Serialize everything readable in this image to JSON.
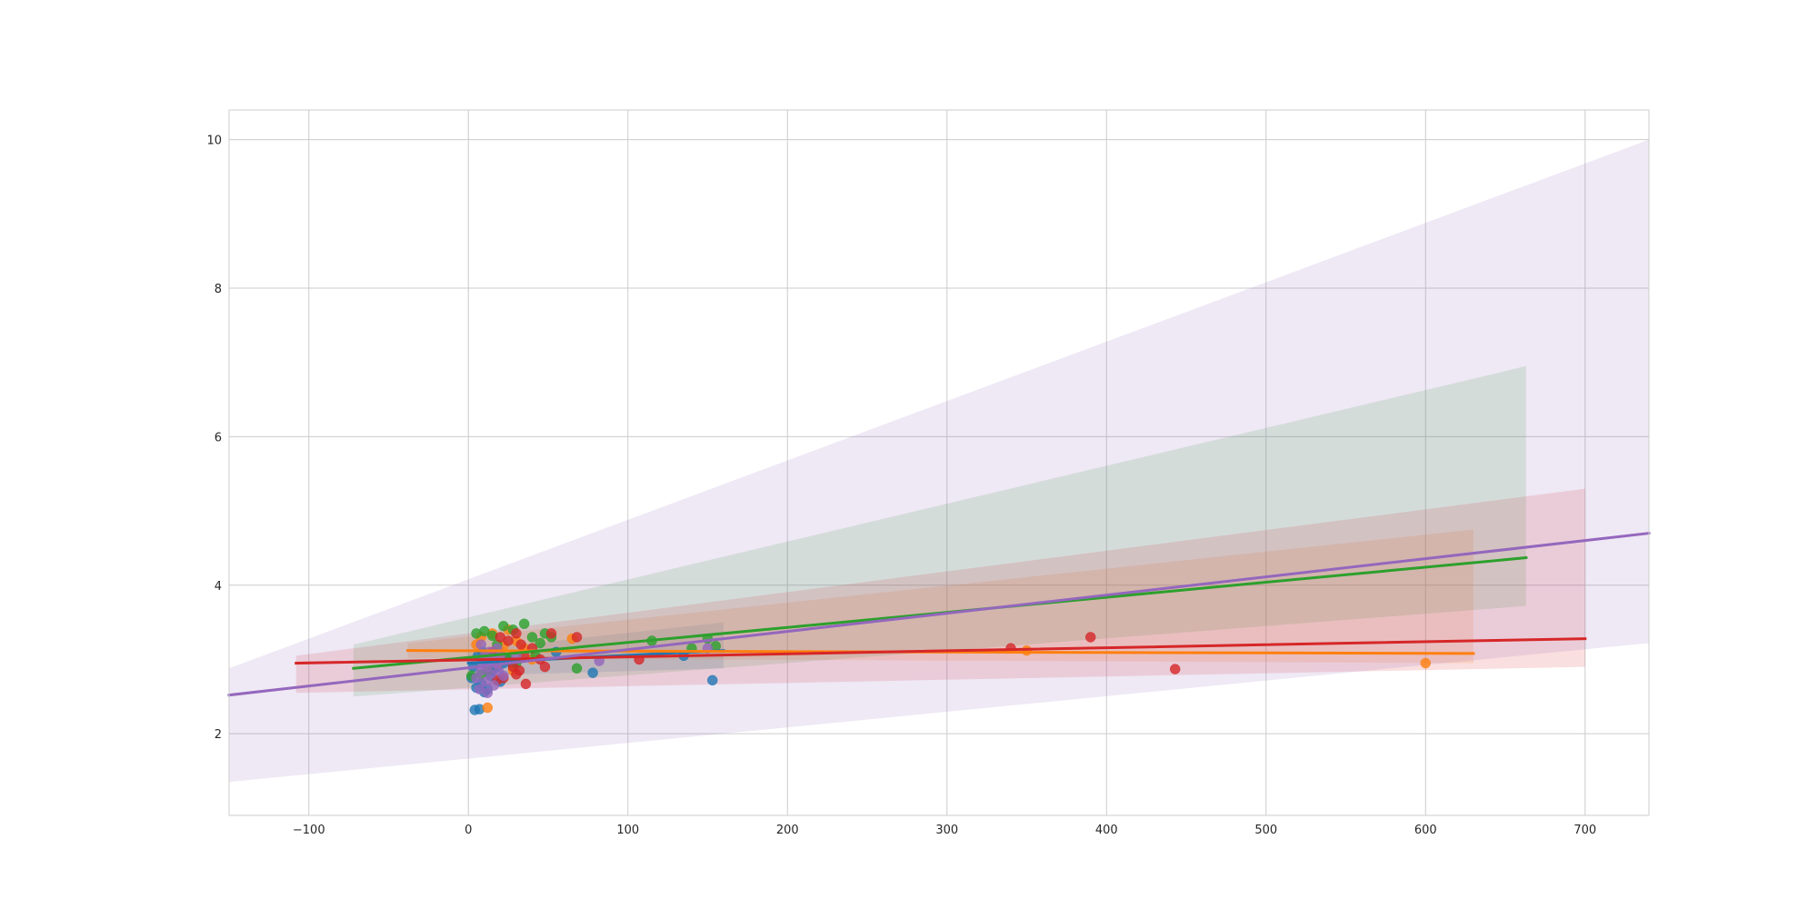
{
  "chart_data": {
    "type": "scatter",
    "title": "",
    "xlabel": "",
    "ylabel": "",
    "xlim": [
      -150,
      740
    ],
    "ylim": [
      0.9,
      10.4
    ],
    "xticks": [
      -100,
      0,
      100,
      200,
      300,
      400,
      500,
      600,
      700
    ],
    "xtick_labels": [
      "−100",
      "0",
      "100",
      "200",
      "300",
      "400",
      "500",
      "600",
      "700"
    ],
    "yticks": [
      2,
      4,
      6,
      8,
      10
    ],
    "ytick_labels": [
      "2",
      "4",
      "6",
      "8",
      "10"
    ],
    "grid": true,
    "legend": "none",
    "series": [
      {
        "color": "#1f77b4",
        "points": [
          [
            2,
            2.75
          ],
          [
            5,
            2.62
          ],
          [
            8,
            2.68
          ],
          [
            10,
            2.56
          ],
          [
            12,
            2.6
          ],
          [
            15,
            2.85
          ],
          [
            18,
            2.9
          ],
          [
            22,
            2.95
          ],
          [
            25,
            3.0
          ],
          [
            4,
            2.32
          ],
          [
            7,
            2.33
          ],
          [
            3,
            2.9
          ],
          [
            6,
            3.05
          ],
          [
            9,
            3.1
          ],
          [
            14,
            2.78
          ],
          [
            20,
            2.7
          ],
          [
            28,
            2.92
          ],
          [
            78,
            2.82
          ],
          [
            153,
            2.72
          ],
          [
            135,
            3.05
          ],
          [
            55,
            3.1
          ]
        ],
        "fit_x": [
          0,
          160
        ],
        "fit_y": [
          2.95,
          3.12
        ],
        "band_lo": [
          2.78,
          2.88
        ],
        "band_hi": [
          3.12,
          3.5
        ]
      },
      {
        "color": "#ff7f0e",
        "points": [
          [
            5,
            3.2
          ],
          [
            8,
            3.3
          ],
          [
            12,
            3.05
          ],
          [
            15,
            3.35
          ],
          [
            20,
            3.1
          ],
          [
            25,
            3.4
          ],
          [
            30,
            3.25
          ],
          [
            35,
            3.15
          ],
          [
            12,
            2.35
          ],
          [
            18,
            2.95
          ],
          [
            28,
            2.85
          ],
          [
            65,
            3.28
          ],
          [
            40,
            3.0
          ],
          [
            600,
            2.95
          ],
          [
            350,
            3.12
          ],
          [
            22,
            3.18
          ]
        ],
        "fit_x": [
          -38,
          630
        ],
        "fit_y": [
          3.12,
          3.08
        ],
        "band_lo": [
          3.02,
          2.95
        ],
        "band_hi": [
          3.22,
          4.75
        ]
      },
      {
        "color": "#2ca02c",
        "points": [
          [
            5,
            3.35
          ],
          [
            10,
            3.38
          ],
          [
            15,
            3.32
          ],
          [
            22,
            3.45
          ],
          [
            28,
            3.4
          ],
          [
            35,
            3.48
          ],
          [
            40,
            3.3
          ],
          [
            45,
            3.22
          ],
          [
            48,
            3.35
          ],
          [
            52,
            3.3
          ],
          [
            8,
            2.8
          ],
          [
            12,
            2.85
          ],
          [
            18,
            3.2
          ],
          [
            25,
            3.0
          ],
          [
            30,
            2.95
          ],
          [
            68,
            2.88
          ],
          [
            42,
            3.05
          ],
          [
            115,
            3.25
          ],
          [
            150,
            3.28
          ],
          [
            155,
            3.18
          ],
          [
            140,
            3.15
          ],
          [
            2,
            2.78
          ]
        ],
        "fit_x": [
          -72,
          663
        ],
        "fit_y": [
          2.88,
          4.37
        ],
        "band_lo": [
          2.5,
          3.72
        ],
        "band_hi": [
          3.2,
          6.95
        ]
      },
      {
        "color": "#d62728",
        "points": [
          [
            20,
            3.3
          ],
          [
            25,
            3.25
          ],
          [
            30,
            3.35
          ],
          [
            33,
            3.2
          ],
          [
            35,
            3.05
          ],
          [
            28,
            2.9
          ],
          [
            32,
            2.85
          ],
          [
            30,
            2.8
          ],
          [
            45,
            3.0
          ],
          [
            48,
            2.9
          ],
          [
            52,
            3.35
          ],
          [
            36,
            2.67
          ],
          [
            22,
            2.75
          ],
          [
            68,
            3.3
          ],
          [
            107,
            3.0
          ],
          [
            340,
            3.15
          ],
          [
            390,
            3.3
          ],
          [
            443,
            2.87
          ],
          [
            15,
            3.1
          ],
          [
            40,
            3.15
          ],
          [
            18,
            2.72
          ]
        ],
        "fit_x": [
          -108,
          700
        ],
        "fit_y": [
          2.95,
          3.28
        ],
        "band_lo": [
          2.55,
          2.9
        ],
        "band_hi": [
          3.05,
          5.3
        ]
      },
      {
        "color": "#9467bd",
        "points": [
          [
            5,
            2.75
          ],
          [
            7,
            2.6
          ],
          [
            8,
            2.85
          ],
          [
            9,
            2.95
          ],
          [
            10,
            3.05
          ],
          [
            11,
            2.7
          ],
          [
            12,
            2.9
          ],
          [
            13,
            3.1
          ],
          [
            14,
            2.8
          ],
          [
            15,
            3.0
          ],
          [
            16,
            2.65
          ],
          [
            17,
            2.95
          ],
          [
            18,
            3.15
          ],
          [
            19,
            2.85
          ],
          [
            20,
            3.05
          ],
          [
            22,
            2.78
          ],
          [
            8,
            3.2
          ],
          [
            12,
            2.55
          ],
          [
            82,
            2.98
          ],
          [
            30,
            3.05
          ],
          [
            150,
            3.15
          ]
        ],
        "fit_x": [
          -150,
          740
        ],
        "fit_y": [
          2.52,
          4.7
        ],
        "band_lo": [
          1.35,
          3.22
        ],
        "band_hi": [
          2.88,
          10.0
        ]
      }
    ]
  }
}
